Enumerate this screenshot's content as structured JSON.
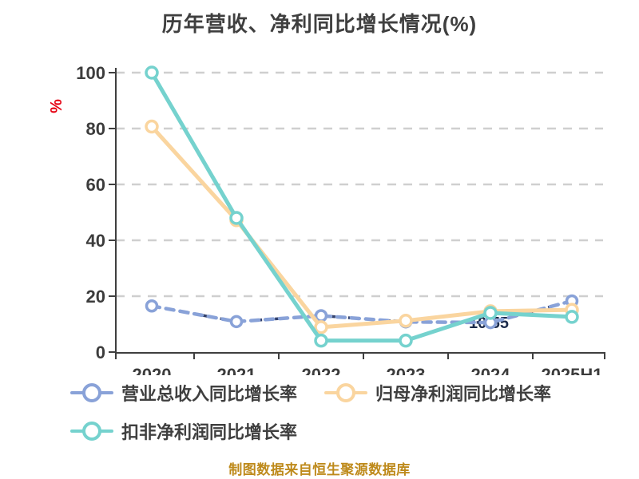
{
  "title": "历年营收、净利同比增长情况(%)",
  "footer": "制图数据来自恒生聚源数据库",
  "y_axis_unit": "%",
  "point_label": "10.55",
  "colors": {
    "grid": "#CFCFCF",
    "axis": "#3F3F3F",
    "tick_text": "#3C3C3C",
    "unit_red": "#E60012",
    "footer_gold": "#BE8A1B",
    "label_dark": "#1B2A4A",
    "revenue_blue": "#89A2D8",
    "revenue_underlay_navy": "#32406B",
    "net_profit_orange": "#FAD59F",
    "non_gaap_teal": "#75D2CE"
  },
  "chart_data": {
    "type": "line",
    "title": "历年营收、净利同比增长情况(%)",
    "categories": [
      "2020",
      "2021",
      "2022",
      "2023",
      "2024",
      "2025H1"
    ],
    "series": [
      {
        "name": "营业总收入同比增长率",
        "color": "#89A2D8",
        "style": "dashed",
        "values": [
          16.5,
          10.9,
          13.0,
          10.8,
          10.55,
          18.3
        ]
      },
      {
        "name": "归母净利润同比增长率",
        "color": "#FAD59F",
        "style": "solid",
        "values": [
          80.7,
          47.2,
          8.9,
          11.2,
          14.6,
          15.1
        ]
      },
      {
        "name": "扣非净利润同比增长率",
        "color": "#75D2CE",
        "style": "solid",
        "values": [
          100.0,
          48.0,
          4.1,
          4.1,
          14.0,
          12.6
        ]
      }
    ],
    "ylabel": "%",
    "yticks": [
      0,
      20,
      40,
      60,
      80,
      100
    ],
    "ylim": [
      0,
      105
    ],
    "grid": "horizontal-dashed",
    "legend_position": "bottom-left",
    "annotations": [
      {
        "text": "10.55",
        "series": "营业总收入同比增长率",
        "category": "2024",
        "note": "dark label partially covered by lines"
      }
    ]
  }
}
